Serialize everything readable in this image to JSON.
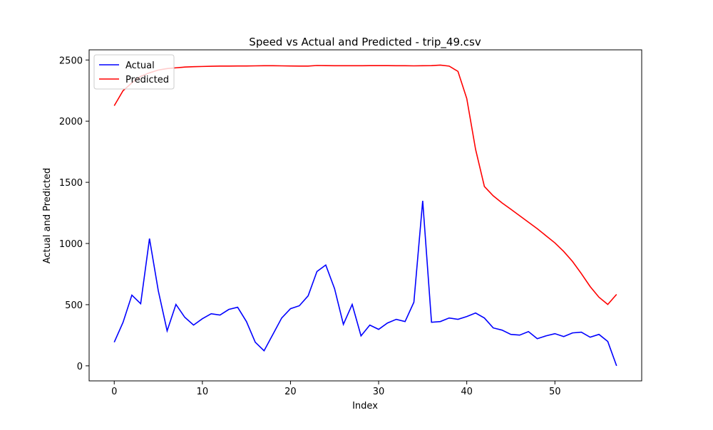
{
  "chart_data": {
    "type": "line",
    "title": "Speed vs Actual and Predicted - trip_49.csv",
    "xlabel": "Index",
    "ylabel": "Actual and Predicted",
    "x": [
      0,
      1,
      2,
      3,
      4,
      5,
      6,
      7,
      8,
      9,
      10,
      11,
      12,
      13,
      14,
      15,
      16,
      17,
      18,
      19,
      20,
      21,
      22,
      23,
      24,
      25,
      26,
      27,
      28,
      29,
      30,
      31,
      32,
      33,
      34,
      35,
      36,
      37,
      38,
      39,
      40,
      41,
      42,
      43,
      44,
      45,
      46,
      47,
      48,
      49,
      50,
      51,
      52,
      53,
      54,
      55,
      56,
      57
    ],
    "series": [
      {
        "name": "Actual",
        "color": "#0000ff",
        "values": [
          193,
          356,
          578,
          508,
          1040,
          613,
          286,
          502,
          397,
          333,
          385,
          426,
          415,
          461,
          479,
          362,
          193,
          123,
          257,
          391,
          467,
          491,
          572,
          771,
          824,
          631,
          339,
          502,
          245,
          333,
          298,
          350,
          380,
          362,
          520,
          1349,
          356,
          362,
          391,
          380,
          403,
          432,
          391,
          310,
          292,
          257,
          251,
          280,
          222,
          245,
          263,
          239,
          269,
          275,
          234,
          257,
          199,
          0
        ]
      },
      {
        "name": "Predicted",
        "color": "#ff0000",
        "values": [
          2126,
          2249,
          2313,
          2366,
          2395,
          2418,
          2430,
          2436,
          2442,
          2445,
          2447,
          2449,
          2450,
          2450,
          2451,
          2451,
          2452,
          2453,
          2453,
          2452,
          2451,
          2450,
          2450,
          2455,
          2454,
          2453,
          2453,
          2453,
          2453,
          2454,
          2454,
          2454,
          2453,
          2453,
          2452,
          2453,
          2454,
          2458,
          2450,
          2407,
          2185,
          1770,
          1466,
          1390,
          1332,
          1280,
          1227,
          1174,
          1121,
          1063,
          1005,
          935,
          853,
          754,
          648,
          561,
          502,
          584
        ]
      }
    ],
    "xlim": [
      -2.85,
      59.85
    ],
    "xticks": [
      0,
      10,
      20,
      30,
      40,
      50
    ],
    "ylim": [
      -123,
      2583
    ],
    "yticks": [
      0,
      500,
      1000,
      1500,
      2000,
      2500
    ],
    "legend": "upper left",
    "grid": false
  }
}
